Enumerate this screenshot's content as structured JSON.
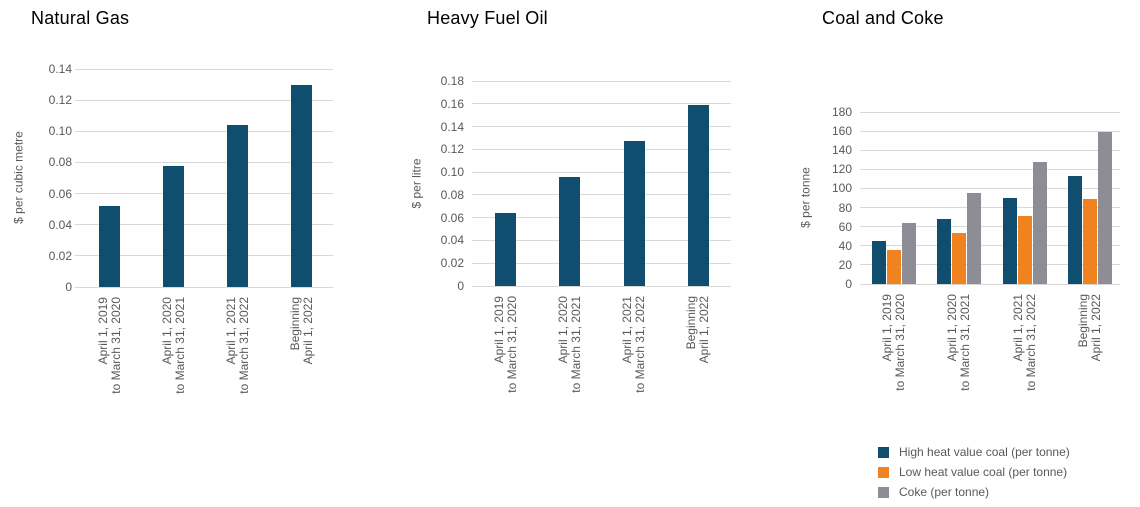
{
  "figure": {
    "background": "#FFFFFF"
  },
  "colors": {
    "bar_blue": "#0F4E6E",
    "bar_orange": "#F0831F",
    "bar_gray": "#8D8D96",
    "gridline": "#D9D9D9",
    "axis_text": "#595959",
    "title_text": "#000000"
  },
  "chart_data": [
    {
      "type": "bar",
      "title": "Natural Gas",
      "ylabel": "$ per cubic metre",
      "ylim": [
        0,
        0.14
      ],
      "ytick_step": 0.02,
      "ytick_labels": [
        "0.14",
        "0.12",
        "0.10",
        "0.08",
        "0.06",
        "0.04",
        "0.02",
        "0"
      ],
      "grid": true,
      "legend": null,
      "categories": [
        [
          "April 1, 2019",
          "to March 31, 2020"
        ],
        [
          "April 1, 2020",
          "to March 31, 2021"
        ],
        [
          "April 1, 2021",
          "to March 31, 2022"
        ],
        [
          "Beginning",
          "April 1, 2022"
        ]
      ],
      "series": [
        {
          "name": null,
          "color_key": "bar_blue",
          "values": [
            0.052,
            0.078,
            0.104,
            0.13
          ]
        }
      ]
    },
    {
      "type": "bar",
      "title": "Heavy Fuel Oil",
      "ylabel": "$ per litre",
      "ylim": [
        0,
        0.18
      ],
      "ytick_step": 0.02,
      "ytick_labels": [
        "0.18",
        "0.16",
        "0.14",
        "0.12",
        "0.10",
        "0.08",
        "0.06",
        "0.04",
        "0.02",
        "0"
      ],
      "grid": true,
      "legend": null,
      "categories": [
        [
          "April 1, 2019",
          "to March 31, 2020"
        ],
        [
          "April 1, 2020",
          "to March 31, 2021"
        ],
        [
          "April 1, 2021",
          "to March 31, 2022"
        ],
        [
          "Beginning",
          "April 1, 2022"
        ]
      ],
      "series": [
        {
          "name": null,
          "color_key": "bar_blue",
          "values": [
            0.064,
            0.096,
            0.127,
            0.159
          ]
        }
      ]
    },
    {
      "type": "bar",
      "title": "Coal and Coke",
      "ylabel": "$ per tonne",
      "ylim": [
        0,
        180
      ],
      "ytick_step": 20,
      "ytick_labels": [
        "180",
        "160",
        "140",
        "120",
        "100",
        "80",
        "60",
        "40",
        "20",
        "0"
      ],
      "grid": true,
      "legend": {
        "position": "bottom-right",
        "items": [
          "High heat value coal (per tonne)",
          "Low heat value coal (per tonne)",
          "Coke (per tonne)"
        ]
      },
      "categories": [
        [
          "April 1, 2019",
          "to March 31, 2020"
        ],
        [
          "April 1, 2020",
          "to March 31, 2021"
        ],
        [
          "April 1, 2021",
          "to March 31, 2022"
        ],
        [
          "Beginning",
          "April 1, 2022"
        ]
      ],
      "series": [
        {
          "name": "High heat value coal (per tonne)",
          "color_key": "bar_blue",
          "values": [
            45.0,
            67.6,
            90.1,
            112.6
          ]
        },
        {
          "name": "Low heat value coal (per tonne)",
          "color_key": "bar_orange",
          "values": [
            35.4,
            53.2,
            70.9,
            88.6
          ]
        },
        {
          "name": "Coke (per tonne)",
          "color_key": "bar_gray",
          "values": [
            63.6,
            95.4,
            127.2,
            159.0
          ]
        }
      ]
    }
  ]
}
